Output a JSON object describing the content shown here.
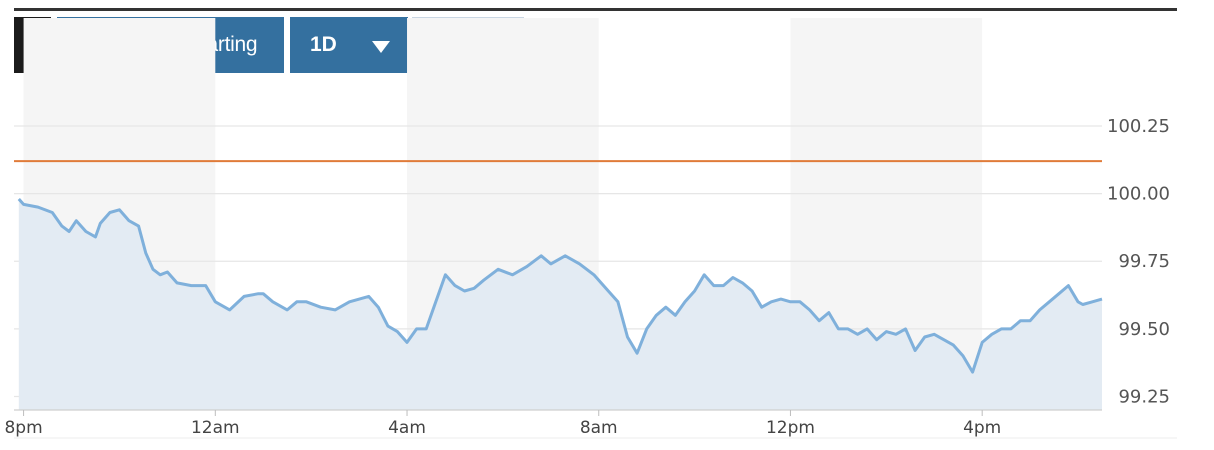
{
  "toolbar": {
    "back_label": "‹",
    "advanced_label": "Advanced Charting",
    "range_label": "1D",
    "currency_label": "$",
    "percent_label": "%"
  },
  "colors": {
    "top_rule": "#333333",
    "button_bg": "#34709f",
    "back_bg": "#1b1b1b",
    "toggle_active_bg": "#d9e4ee",
    "toggle_active_text": "#2e6898",
    "line": "#7fb0db",
    "fill": "#e3ebf3",
    "reference": "#e07b39",
    "band": "#f5f5f5",
    "grid": "#e6e6e6"
  },
  "chart_data": {
    "type": "area",
    "y_axis_side": "right",
    "ylim": [
      99.2,
      100.42
    ],
    "y_ticks": [
      "100.25",
      "100.00",
      "99.75",
      "99.50",
      "99.25"
    ],
    "y_tick_values": [
      100.25,
      100.0,
      99.75,
      99.5,
      99.25
    ],
    "x_tick_labels": [
      "8pm",
      "12am",
      "4am",
      "8am",
      "12pm",
      "4pm"
    ],
    "xlim_hours": [
      -0.2,
      22.5
    ],
    "reference_line": 100.12,
    "series": [
      {
        "x_hours": [
          -0.1,
          0.0,
          0.3,
          0.6,
          0.8,
          0.95,
          1.1,
          1.3,
          1.5,
          1.6,
          1.8,
          2.0,
          2.2,
          2.4,
          2.55,
          2.7,
          2.85,
          3.0,
          3.2,
          3.5,
          3.8,
          4.0,
          4.3,
          4.6,
          4.9,
          5.0,
          5.2,
          5.5,
          5.7,
          5.9,
          6.2,
          6.5,
          6.8,
          7.2,
          7.4,
          7.6,
          7.8,
          8.0,
          8.2,
          8.4,
          8.6,
          8.8,
          9.0,
          9.2,
          9.4,
          9.6,
          9.9,
          10.2,
          10.5,
          10.8,
          11.0,
          11.3,
          11.6,
          11.9,
          12.2,
          12.4,
          12.6,
          12.8,
          13.0,
          13.2,
          13.4,
          13.6,
          13.8,
          14.0,
          14.2,
          14.4,
          14.6,
          14.8,
          15.0,
          15.2,
          15.4,
          15.6,
          15.8,
          16.0,
          16.2,
          16.4,
          16.6,
          16.8,
          17.0,
          17.2,
          17.4,
          17.6,
          17.8,
          18.0,
          18.2,
          18.4,
          18.6,
          18.8,
          19.0,
          19.2,
          19.4,
          19.6,
          19.8,
          20.0,
          20.2,
          20.4,
          20.6,
          20.8,
          21.0,
          21.2,
          21.4,
          21.6,
          21.8,
          22.0,
          22.1,
          22.3,
          22.5
        ],
        "values": [
          99.98,
          99.96,
          99.95,
          99.93,
          99.88,
          99.86,
          99.9,
          99.86,
          99.84,
          99.89,
          99.93,
          99.94,
          99.9,
          99.88,
          99.78,
          99.72,
          99.7,
          99.71,
          99.67,
          99.66,
          99.66,
          99.6,
          99.57,
          99.62,
          99.63,
          99.63,
          99.6,
          99.57,
          99.6,
          99.6,
          99.58,
          99.57,
          99.6,
          99.62,
          99.58,
          99.51,
          99.49,
          99.45,
          99.5,
          99.5,
          99.6,
          99.7,
          99.66,
          99.64,
          99.65,
          99.68,
          99.72,
          99.7,
          99.73,
          99.77,
          99.74,
          99.77,
          99.74,
          99.7,
          99.64,
          99.6,
          99.47,
          99.41,
          99.5,
          99.55,
          99.58,
          99.55,
          99.6,
          99.64,
          99.7,
          99.66,
          99.66,
          99.69,
          99.67,
          99.64,
          99.58,
          99.6,
          99.61,
          99.6,
          99.6,
          99.57,
          99.53,
          99.56,
          99.5,
          99.5,
          99.48,
          99.5,
          99.46,
          99.49,
          99.48,
          99.5,
          99.42,
          99.47,
          99.48,
          99.46,
          99.44,
          99.4,
          99.34,
          99.45,
          99.48,
          99.5,
          99.5,
          99.53,
          99.53,
          99.57,
          99.6,
          99.63,
          99.66,
          99.6,
          99.59,
          99.6,
          99.61
        ]
      }
    ]
  }
}
